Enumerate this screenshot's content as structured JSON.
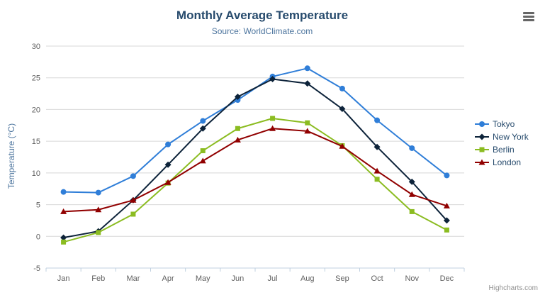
{
  "credit": {
    "label": "Highcharts.com"
  },
  "export_menu": {
    "icon": "hamburger-icon"
  },
  "chart_data": {
    "type": "line",
    "title": "Monthly Average Temperature",
    "subtitle": "Source: WorldClimate.com",
    "xlabel": "",
    "ylabel": "Temperature (°C)",
    "ylim": [
      -5,
      30
    ],
    "yticks": [
      -5,
      0,
      5,
      10,
      15,
      20,
      25,
      30
    ],
    "grid": true,
    "legend_position": "right",
    "categories": [
      "Jan",
      "Feb",
      "Mar",
      "Apr",
      "May",
      "Jun",
      "Jul",
      "Aug",
      "Sep",
      "Oct",
      "Nov",
      "Dec"
    ],
    "series": [
      {
        "name": "Tokyo",
        "color": "#2f7ed8",
        "marker": "circle",
        "values": [
          7.0,
          6.9,
          9.5,
          14.5,
          18.2,
          21.5,
          25.2,
          26.5,
          23.3,
          18.3,
          13.9,
          9.6
        ]
      },
      {
        "name": "New York",
        "color": "#0d233a",
        "marker": "diamond",
        "values": [
          -0.2,
          0.8,
          5.7,
          11.3,
          17.0,
          22.0,
          24.8,
          24.1,
          20.1,
          14.1,
          8.6,
          2.5
        ]
      },
      {
        "name": "Berlin",
        "color": "#8bbc21",
        "marker": "square",
        "values": [
          -0.9,
          0.6,
          3.5,
          8.4,
          13.5,
          17.0,
          18.6,
          17.9,
          14.3,
          9.0,
          3.9,
          1.0
        ]
      },
      {
        "name": "London",
        "color": "#910000",
        "marker": "triangle",
        "values": [
          3.9,
          4.2,
          5.7,
          8.5,
          11.9,
          15.2,
          17.0,
          16.6,
          14.2,
          10.3,
          6.6,
          4.8
        ]
      }
    ],
    "plot_style": {
      "grid_color": "#d8d8d8",
      "axis_line_color": "#c0d0e0",
      "label_color": "#606060"
    }
  }
}
